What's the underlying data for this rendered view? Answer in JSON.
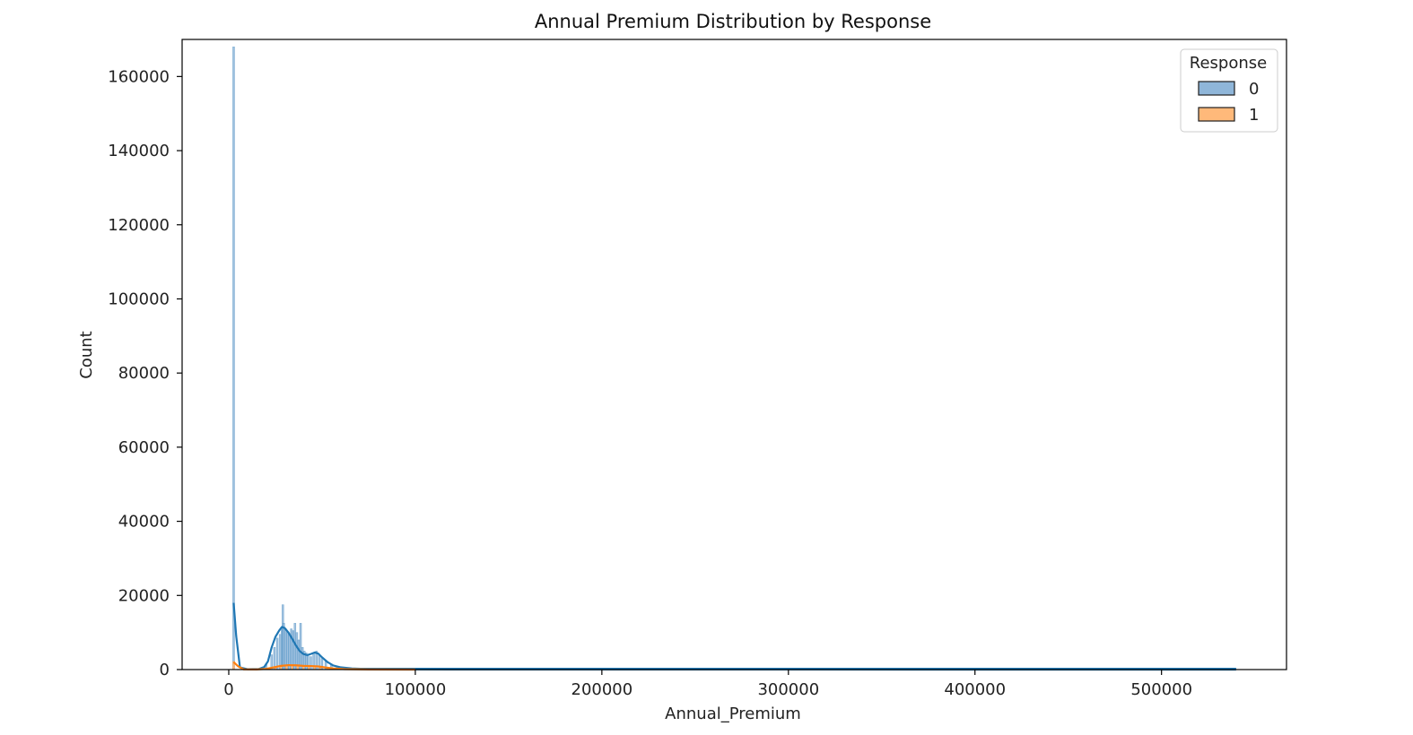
{
  "chart_data": {
    "type": "histogram",
    "title": "Annual Premium Distribution by Response",
    "xlabel": "Annual_Premium",
    "ylabel": "Count",
    "xlim": [
      -25000,
      567000
    ],
    "ylim": [
      0,
      170000
    ],
    "xticks": [
      0,
      100000,
      200000,
      300000,
      400000,
      500000
    ],
    "xtick_labels": [
      "0",
      "100000",
      "200000",
      "300000",
      "400000",
      "500000"
    ],
    "yticks": [
      0,
      20000,
      40000,
      60000,
      80000,
      100000,
      120000,
      140000,
      160000
    ],
    "ytick_labels": [
      "0",
      "20000",
      "40000",
      "60000",
      "80000",
      "100000",
      "120000",
      "140000",
      "160000"
    ],
    "grid": false,
    "legend": {
      "title": "Response",
      "placement": "top-right"
    },
    "series": [
      {
        "name": "0",
        "color": "#1f77b4",
        "fill": "#8fb6d9",
        "histogram_points": [
          [
            2630,
            168000
          ],
          [
            20000,
            1500
          ],
          [
            23000,
            4000
          ],
          [
            24500,
            6000
          ],
          [
            26000,
            8500
          ],
          [
            27500,
            9500
          ],
          [
            28500,
            11000
          ],
          [
            29000,
            17500
          ],
          [
            29500,
            12500
          ],
          [
            30500,
            11000
          ],
          [
            31500,
            10000
          ],
          [
            32500,
            9500
          ],
          [
            33500,
            11000
          ],
          [
            34500,
            10500
          ],
          [
            35500,
            12500
          ],
          [
            36500,
            10000
          ],
          [
            37500,
            8000
          ],
          [
            38500,
            12500
          ],
          [
            39500,
            6000
          ],
          [
            40500,
            5000
          ],
          [
            41500,
            4500
          ],
          [
            42500,
            4000
          ],
          [
            44000,
            3500
          ],
          [
            45500,
            4500
          ],
          [
            47000,
            5000
          ],
          [
            48500,
            4000
          ],
          [
            50000,
            3000
          ],
          [
            52000,
            2500
          ],
          [
            55000,
            1500
          ],
          [
            58000,
            900
          ],
          [
            62000,
            500
          ],
          [
            70000,
            200
          ],
          [
            90000,
            100
          ]
        ],
        "kde": [
          [
            2630,
            18000
          ],
          [
            4000,
            9000
          ],
          [
            6000,
            600
          ],
          [
            10000,
            100
          ],
          [
            16000,
            150
          ],
          [
            19000,
            700
          ],
          [
            21000,
            2200
          ],
          [
            23000,
            6000
          ],
          [
            25000,
            8800
          ],
          [
            27000,
            10500
          ],
          [
            28500,
            11500
          ],
          [
            30000,
            11200
          ],
          [
            32000,
            10000
          ],
          [
            34000,
            8300
          ],
          [
            36000,
            6500
          ],
          [
            38000,
            5000
          ],
          [
            40000,
            4200
          ],
          [
            42000,
            3900
          ],
          [
            44000,
            4200
          ],
          [
            46000,
            4600
          ],
          [
            48000,
            4300
          ],
          [
            50000,
            3300
          ],
          [
            53000,
            2000
          ],
          [
            56000,
            1100
          ],
          [
            60000,
            600
          ],
          [
            66000,
            300
          ],
          [
            75000,
            120
          ],
          [
            90000,
            50
          ],
          [
            120000,
            20
          ],
          [
            540000,
            0
          ]
        ]
      },
      {
        "name": "1",
        "color": "#ff7f0e",
        "fill": "#ffb97a",
        "histogram_points": [
          [
            2630,
            2200
          ],
          [
            22000,
            200
          ],
          [
            25000,
            500
          ],
          [
            28000,
            900
          ],
          [
            31000,
            1100
          ],
          [
            34000,
            1200
          ],
          [
            37000,
            1100
          ],
          [
            40000,
            1000
          ],
          [
            43000,
            900
          ],
          [
            46000,
            900
          ],
          [
            49000,
            700
          ],
          [
            53000,
            400
          ],
          [
            58000,
            200
          ],
          [
            65000,
            80
          ]
        ],
        "kde": [
          [
            2630,
            2000
          ],
          [
            5000,
            900
          ],
          [
            8000,
            50
          ],
          [
            15000,
            30
          ],
          [
            20000,
            200
          ],
          [
            24000,
            600
          ],
          [
            28000,
            1000
          ],
          [
            32000,
            1200
          ],
          [
            36000,
            1150
          ],
          [
            40000,
            1000
          ],
          [
            44000,
            950
          ],
          [
            48000,
            850
          ],
          [
            52000,
            550
          ],
          [
            56000,
            300
          ],
          [
            62000,
            120
          ],
          [
            75000,
            30
          ],
          [
            100000,
            0
          ]
        ]
      }
    ]
  }
}
